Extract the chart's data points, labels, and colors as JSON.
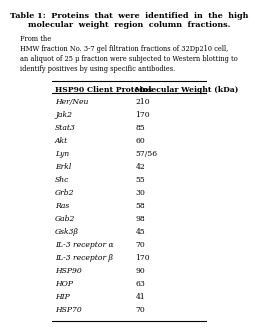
{
  "title": "Table 1:  Proteins  that  were  identified  in  the  high\nmolecular  weight  region  column  fractions.",
  "caption": "From the\nHMW fraction No. 3-7 gel filtration fractions of 32Dp210 cell,\nan aliquot of 25 μ fraction were subjected to Western blotting to\nidentify positives by using specific antibodies.",
  "col1_header": "HSP90 Client Proteins",
  "col2_header": "Molecular Weight (kDa)",
  "rows": [
    [
      "Her/Neu",
      "210"
    ],
    [
      "Jak2",
      "170"
    ],
    [
      "Stat3",
      "85"
    ],
    [
      "Akt",
      "60"
    ],
    [
      "Lyn",
      "57/56"
    ],
    [
      "Erkl",
      "42"
    ],
    [
      "Shc",
      "55"
    ],
    [
      "Grb2",
      "30"
    ],
    [
      "Ras",
      "58"
    ],
    [
      "Gab2",
      "98"
    ],
    [
      "Gsk3β",
      "45"
    ],
    [
      "IL-3 receptor α",
      "70"
    ],
    [
      "IL-3 receptor β",
      "170"
    ],
    [
      "HSP90",
      "90"
    ],
    [
      "HOP",
      "63"
    ],
    [
      "HIP",
      "41"
    ],
    [
      "HSP70",
      "70"
    ]
  ],
  "bg_color": "#ffffff",
  "text_color": "#000000",
  "font_size": 5.5,
  "title_font_size": 5.8,
  "caption_font_size": 4.8
}
